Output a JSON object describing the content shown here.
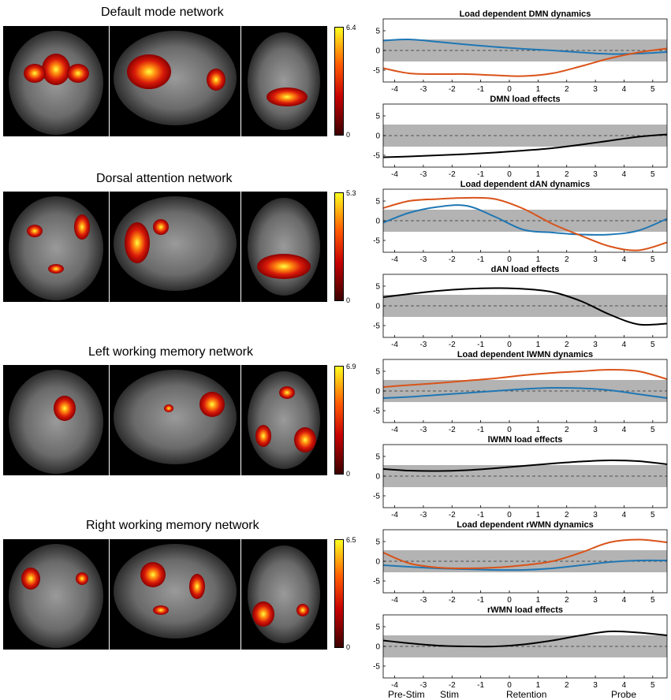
{
  "networks": [
    {
      "title": "Default mode network",
      "cb_max": "6.4",
      "cb_min": "0"
    },
    {
      "title": "Dorsal attention network",
      "cb_max": "5.3",
      "cb_min": "0"
    },
    {
      "title": "Left working memory network",
      "cb_max": "6.9",
      "cb_min": "0"
    },
    {
      "title": "Right working memory network",
      "cb_max": "6.5",
      "cb_min": "0"
    }
  ],
  "phases": [
    "Pre-Stim",
    "Stim",
    "Retention",
    "Probe"
  ],
  "colors": {
    "blue": "#1f77b4",
    "orange": "#d95319",
    "black": "#000000",
    "band": "#b3b3b3"
  },
  "chart_data": [
    {
      "type": "line",
      "title": "Load dependent DMN dynamics",
      "xlim": [
        -4.4,
        5.5
      ],
      "ylim": [
        -8,
        8
      ],
      "xticks": [
        -4,
        -3,
        -2,
        -1,
        0,
        1,
        2,
        3,
        4,
        5
      ],
      "yticks": [
        5,
        0,
        -5
      ],
      "band": [
        -2.8,
        2.8
      ],
      "series": [
        {
          "color": "blue",
          "x": [
            -4.4,
            -3.5,
            -2.5,
            -1.5,
            -0.5,
            0.5,
            1.5,
            2.5,
            3.5,
            4.5,
            5.5
          ],
          "y": [
            2.5,
            2.8,
            2.2,
            1.5,
            0.9,
            0.4,
            0,
            -0.5,
            -0.9,
            -0.8,
            -0.4
          ]
        },
        {
          "color": "orange",
          "x": [
            -4.4,
            -3.5,
            -2.5,
            -1.5,
            -0.5,
            0.5,
            1.5,
            2.5,
            3.5,
            4.5,
            5.5
          ],
          "y": [
            -4.5,
            -5.8,
            -6,
            -6,
            -6.3,
            -6.5,
            -5.8,
            -4,
            -2,
            -0.5,
            0.5
          ]
        }
      ]
    },
    {
      "type": "line",
      "title": "DMN load effects",
      "xlim": [
        -4.4,
        5.5
      ],
      "ylim": [
        -8,
        8
      ],
      "xticks": [
        -4,
        -3,
        -2,
        -1,
        0,
        1,
        2,
        3,
        4,
        5
      ],
      "yticks": [
        5,
        0,
        -5
      ],
      "band": [
        -2.8,
        2.8
      ],
      "series": [
        {
          "color": "black",
          "x": [
            -4.4,
            -3.5,
            -2.5,
            -1.5,
            -0.5,
            0.5,
            1.5,
            2.5,
            3.5,
            4.5,
            5.5
          ],
          "y": [
            -5.5,
            -5.3,
            -5,
            -4.7,
            -4.3,
            -3.8,
            -3.2,
            -2.3,
            -1.3,
            -0.3,
            0.3
          ]
        }
      ]
    },
    {
      "type": "line",
      "title": "Load dependent dAN dynamics",
      "xlim": [
        -4.4,
        5.5
      ],
      "ylim": [
        -8,
        8
      ],
      "xticks": [
        -4,
        -3,
        -2,
        -1,
        0,
        1,
        2,
        3,
        4,
        5
      ],
      "yticks": [
        5,
        0,
        -5
      ],
      "band": [
        -2.8,
        2.8
      ],
      "series": [
        {
          "color": "blue",
          "x": [
            -4.4,
            -3.5,
            -2.5,
            -1.5,
            -0.5,
            0.5,
            1.5,
            2.5,
            3.5,
            4.5,
            5.5
          ],
          "y": [
            -0.5,
            2,
            3.5,
            3.8,
            1,
            -2.3,
            -3,
            -3.5,
            -3.5,
            -2.5,
            0.5
          ]
        },
        {
          "color": "orange",
          "x": [
            -4.4,
            -3.5,
            -2.5,
            -1.5,
            -0.5,
            0.5,
            1.5,
            2.5,
            3.5,
            4.5,
            5.5
          ],
          "y": [
            3.2,
            5,
            5.5,
            5.8,
            5.5,
            3,
            -0.8,
            -3.8,
            -6.5,
            -7.5,
            -5.5
          ]
        }
      ]
    },
    {
      "type": "line",
      "title": "dAN load effects",
      "xlim": [
        -4.4,
        5.5
      ],
      "ylim": [
        -8,
        8
      ],
      "xticks": [
        -4,
        -3,
        -2,
        -1,
        0,
        1,
        2,
        3,
        4,
        5
      ],
      "yticks": [
        5,
        0,
        -5
      ],
      "band": [
        -2.8,
        2.8
      ],
      "series": [
        {
          "color": "black",
          "x": [
            -4.4,
            -3.5,
            -2.5,
            -1.5,
            -0.5,
            0.5,
            1.5,
            2.5,
            3.5,
            4.5,
            5.5
          ],
          "y": [
            2.2,
            3,
            3.8,
            4.3,
            4.5,
            4.3,
            3.5,
            1.2,
            -2.2,
            -4.7,
            -4.5
          ]
        }
      ]
    },
    {
      "type": "line",
      "title": "Load dependent lWMN dynamics",
      "xlim": [
        -4.4,
        5.5
      ],
      "ylim": [
        -8,
        8
      ],
      "xticks": [
        -4,
        -3,
        -2,
        -1,
        0,
        1,
        2,
        3,
        4,
        5
      ],
      "yticks": [
        5,
        0,
        -5
      ],
      "band": [
        -2.8,
        2.8
      ],
      "series": [
        {
          "color": "blue",
          "x": [
            -4.4,
            -3.5,
            -2.5,
            -1.5,
            -0.5,
            0.5,
            1.5,
            2.5,
            3.5,
            4.5,
            5.5
          ],
          "y": [
            -1.8,
            -1.5,
            -1,
            -0.5,
            0,
            0.5,
            0.8,
            0.7,
            0.2,
            -0.8,
            -1.8
          ]
        },
        {
          "color": "orange",
          "x": [
            -4.4,
            -3.5,
            -2.5,
            -1.5,
            -0.5,
            0.5,
            1.5,
            2.5,
            3.5,
            4.5,
            5.5
          ],
          "y": [
            1,
            1.5,
            2,
            2.6,
            3.2,
            4,
            4.6,
            5,
            5.4,
            5,
            3
          ]
        }
      ]
    },
    {
      "type": "line",
      "title": "lWMN load effects",
      "xlim": [
        -4.4,
        5.5
      ],
      "ylim": [
        -8,
        8
      ],
      "xticks": [
        -4,
        -3,
        -2,
        -1,
        0,
        1,
        2,
        3,
        4,
        5
      ],
      "yticks": [
        5,
        0,
        -5
      ],
      "band": [
        -2.8,
        2.8
      ],
      "series": [
        {
          "color": "black",
          "x": [
            -4.4,
            -3.5,
            -2.5,
            -1.5,
            -0.5,
            0.5,
            1.5,
            2.5,
            3.5,
            4.5,
            5.5
          ],
          "y": [
            1.8,
            1.4,
            1.3,
            1.5,
            2,
            2.6,
            3.2,
            3.7,
            4,
            3.8,
            3
          ]
        }
      ]
    },
    {
      "type": "line",
      "title": "Load dependent rWMN dynamics",
      "xlim": [
        -4.4,
        5.5
      ],
      "ylim": [
        -8,
        8
      ],
      "xticks": [
        -4,
        -3,
        -2,
        -1,
        0,
        1,
        2,
        3,
        4,
        5
      ],
      "yticks": [
        5,
        0,
        -5
      ],
      "band": [
        -2.8,
        2.8
      ],
      "series": [
        {
          "color": "blue",
          "x": [
            -4.4,
            -3.5,
            -2.5,
            -1.5,
            -0.5,
            0.5,
            1.5,
            2.5,
            3.5,
            4.5,
            5.5
          ],
          "y": [
            -1,
            -1.4,
            -1.8,
            -2,
            -2.2,
            -2.2,
            -1.8,
            -1,
            -0.2,
            0.2,
            0.2
          ]
        },
        {
          "color": "orange",
          "x": [
            -4.4,
            -3.5,
            -2.5,
            -1.5,
            -0.5,
            0.5,
            1.5,
            2.5,
            3.5,
            4.5,
            5.5
          ],
          "y": [
            2.2,
            -0.5,
            -1.6,
            -1.8,
            -1.6,
            -1,
            0,
            2.2,
            4.8,
            5.5,
            4.8
          ]
        }
      ]
    },
    {
      "type": "line",
      "title": "rWMN load effects",
      "xlim": [
        -4.4,
        5.5
      ],
      "ylim": [
        -8,
        8
      ],
      "xticks": [
        -4,
        -3,
        -2,
        -1,
        0,
        1,
        2,
        3,
        4,
        5
      ],
      "yticks": [
        5,
        0,
        -5
      ],
      "band": [
        -2.8,
        2.8
      ],
      "series": [
        {
          "color": "black",
          "x": [
            -4.4,
            -3.5,
            -2.5,
            -1.5,
            -0.5,
            0.5,
            1.5,
            2.5,
            3.5,
            4.5,
            5.5
          ],
          "y": [
            1.5,
            0.8,
            0.2,
            0,
            0,
            0.5,
            1.5,
            2.8,
            3.8,
            3.5,
            2.8
          ]
        }
      ]
    }
  ]
}
